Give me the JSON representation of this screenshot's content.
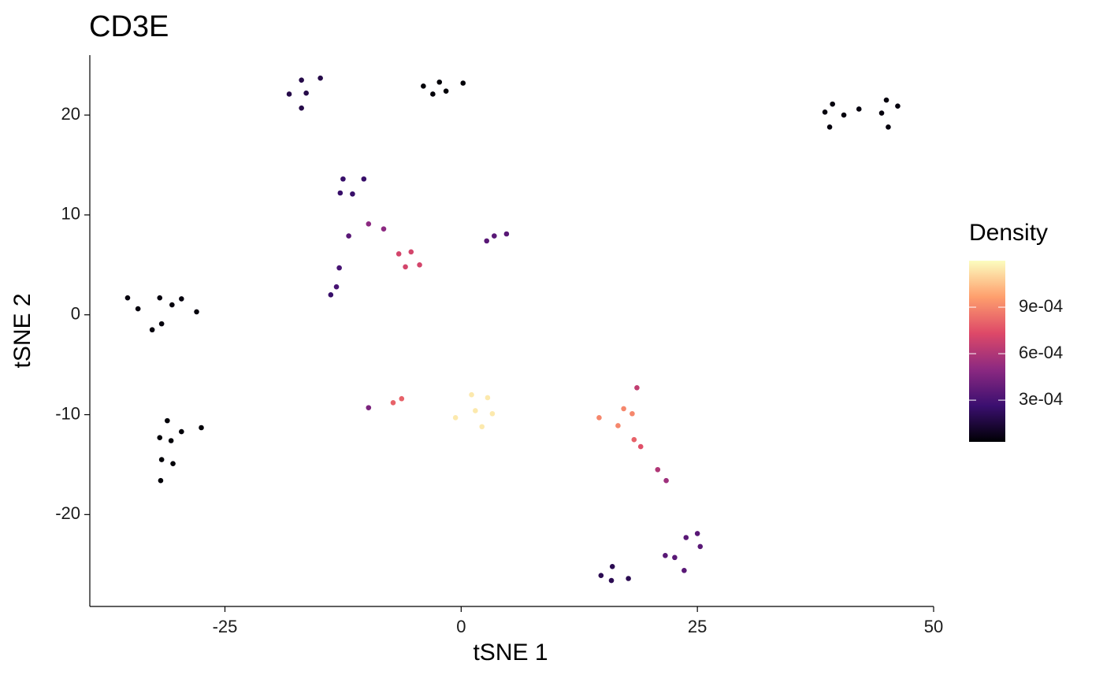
{
  "chart_data": {
    "type": "scatter",
    "title": "CD3E",
    "x_label": "tSNE 1",
    "y_label": "tSNE 2",
    "xlim": [
      -39.3,
      50
    ],
    "ylim": [
      -29.2,
      26.0
    ],
    "xticks": [
      -25,
      0,
      25,
      50
    ],
    "yticks": [
      -20,
      -10,
      0,
      10,
      20
    ],
    "grid": false,
    "legend_title": "Density",
    "colorscale": [
      "#000004",
      "#3b0f70",
      "#8c2981",
      "#de4968",
      "#fe9f6d",
      "#fcfdbf"
    ],
    "clim": [
      3.1e-05,
      0.0012
    ],
    "cticks": [
      {
        "value": 0.0003,
        "label": "3e-04"
      },
      {
        "value": 0.0006,
        "label": "6e-04"
      },
      {
        "value": 0.0009,
        "label": "9e-04"
      }
    ],
    "x": [
      -4.0,
      -3.0,
      -2.3,
      -1.6,
      0.2,
      -18.2,
      -16.9,
      -16.9,
      -16.4,
      -14.9,
      38.5,
      39.3,
      39.0,
      40.5,
      42.1,
      44.5,
      45.0,
      45.2,
      46.2,
      -12.5,
      -10.3,
      -12.8,
      -11.5,
      -11.9,
      -12.9,
      -13.2,
      -13.8,
      -9.8,
      -8.2,
      -6.6,
      -5.3,
      -5.9,
      -4.4,
      2.7,
      3.5,
      4.8,
      -35.3,
      -34.2,
      -31.9,
      -31.7,
      -32.7,
      -30.6,
      -29.6,
      -28.0,
      -31.1,
      -31.9,
      -30.7,
      -29.6,
      -27.5,
      -31.7,
      -30.5,
      -31.8,
      -9.8,
      -7.2,
      -6.3,
      -0.6,
      1.1,
      1.5,
      2.2,
      2.8,
      3.3,
      14.6,
      16.6,
      17.2,
      18.1,
      18.6,
      18.3,
      19.0,
      20.8,
      21.7,
      21.6,
      22.6,
      23.8,
      25.0,
      25.3,
      23.6,
      14.8,
      16.0,
      15.9,
      17.7
    ],
    "y": [
      22.9,
      22.1,
      23.3,
      22.4,
      23.2,
      22.1,
      20.7,
      23.5,
      22.2,
      23.7,
      20.3,
      21.1,
      18.8,
      20.0,
      20.6,
      20.2,
      21.5,
      18.8,
      20.9,
      13.6,
      13.6,
      12.2,
      12.1,
      7.9,
      4.7,
      2.8,
      2.0,
      9.1,
      8.6,
      6.1,
      6.3,
      4.8,
      5.0,
      7.4,
      7.9,
      8.1,
      1.7,
      0.6,
      1.7,
      -0.9,
      -1.5,
      1.0,
      1.6,
      0.3,
      -10.6,
      -12.3,
      -12.6,
      -11.7,
      -11.3,
      -14.5,
      -14.9,
      -16.6,
      -9.3,
      -8.8,
      -8.4,
      -10.3,
      -8.0,
      -9.6,
      -11.2,
      -8.3,
      -9.9,
      -10.3,
      -11.1,
      -9.4,
      -9.9,
      -7.3,
      -12.5,
      -13.2,
      -15.5,
      -16.6,
      -24.1,
      -24.3,
      -22.3,
      -21.9,
      -23.2,
      -25.6,
      -26.1,
      -25.2,
      -26.6,
      -26.4
    ],
    "density": [
      4e-05,
      4e-05,
      4e-05,
      4e-05,
      4e-05,
      0.00018,
      0.00018,
      0.00018,
      0.00018,
      0.00018,
      5e-05,
      5e-05,
      5e-05,
      5e-05,
      5e-05,
      5e-05,
      5e-05,
      5e-05,
      5e-05,
      0.00025,
      0.00025,
      0.00025,
      0.00025,
      0.00035,
      0.0003,
      0.0003,
      0.00025,
      0.0005,
      0.0005,
      0.0007,
      0.0007,
      0.0007,
      0.0007,
      0.00035,
      0.00035,
      0.00035,
      5e-05,
      5e-05,
      5e-05,
      5e-05,
      5e-05,
      5e-05,
      5e-05,
      5e-05,
      4e-05,
      4e-05,
      4e-05,
      4e-05,
      4e-05,
      4e-05,
      4e-05,
      4e-05,
      0.00045,
      0.0008,
      0.0008,
      0.00115,
      0.00115,
      0.00115,
      0.00115,
      0.00115,
      0.00115,
      0.0009,
      0.0009,
      0.0009,
      0.0009,
      0.00065,
      0.0008,
      0.00075,
      0.0006,
      0.00055,
      0.00035,
      0.00035,
      0.00035,
      0.00035,
      0.00035,
      0.00035,
      0.0002,
      0.0002,
      0.0002,
      0.0002
    ]
  }
}
